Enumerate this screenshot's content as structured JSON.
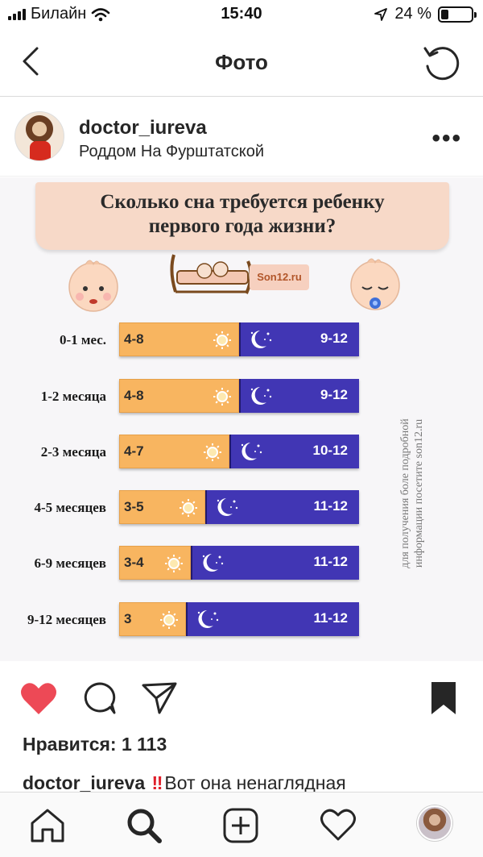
{
  "status_bar": {
    "carrier": "Билайн",
    "time": "15:40",
    "battery_percent": "24 %",
    "battery_level": 0.24
  },
  "header": {
    "title": "Фото"
  },
  "post": {
    "username": "doctor_iureva",
    "location": "Роддом На Фурштатской"
  },
  "infographic": {
    "title": "Сколько сна требуется  ребенку\nпервого года жизни?",
    "logo": "Son12.ru",
    "side_note": "для получения боле подробной\nинформации посетите son12.ru",
    "rows": [
      {
        "label": "0-1 мес.",
        "day": "4-8",
        "night": "9-12",
        "day_share": 0.5
      },
      {
        "label": "1-2 месяца",
        "day": "4-8",
        "night": "9-12",
        "day_share": 0.5
      },
      {
        "label": "2-3 месяца",
        "day": "4-7",
        "night": "10-12",
        "day_share": 0.46
      },
      {
        "label": "4-5 месяцев",
        "day": "3-5",
        "night": "11-12",
        "day_share": 0.36
      },
      {
        "label": "6-9 месяцев",
        "day": "3-4",
        "night": "11-12",
        "day_share": 0.3
      },
      {
        "label": "9-12 месяцев",
        "day": "3",
        "night": "11-12",
        "day_share": 0.28
      }
    ]
  },
  "engagement": {
    "likes": "Нравится: 1 113",
    "caption_user": "doctor_iureva",
    "caption_mark": "‼",
    "caption_text": "Вот она ненаглядная"
  },
  "icons": {
    "back": "chevron-left-icon",
    "refresh": "refresh-icon",
    "more": "more-dots-icon",
    "like": "heart-icon",
    "comment": "comment-icon",
    "share": "send-icon",
    "save": "bookmark-icon",
    "home": "home-icon",
    "search": "search-icon",
    "new_post": "plus-square-icon",
    "activity": "heart-outline-icon",
    "profile": "profile-avatar"
  },
  "colors": {
    "like_red": "#ed4956",
    "day_orange": "#f8b560",
    "night_blue": "#4136b4"
  }
}
